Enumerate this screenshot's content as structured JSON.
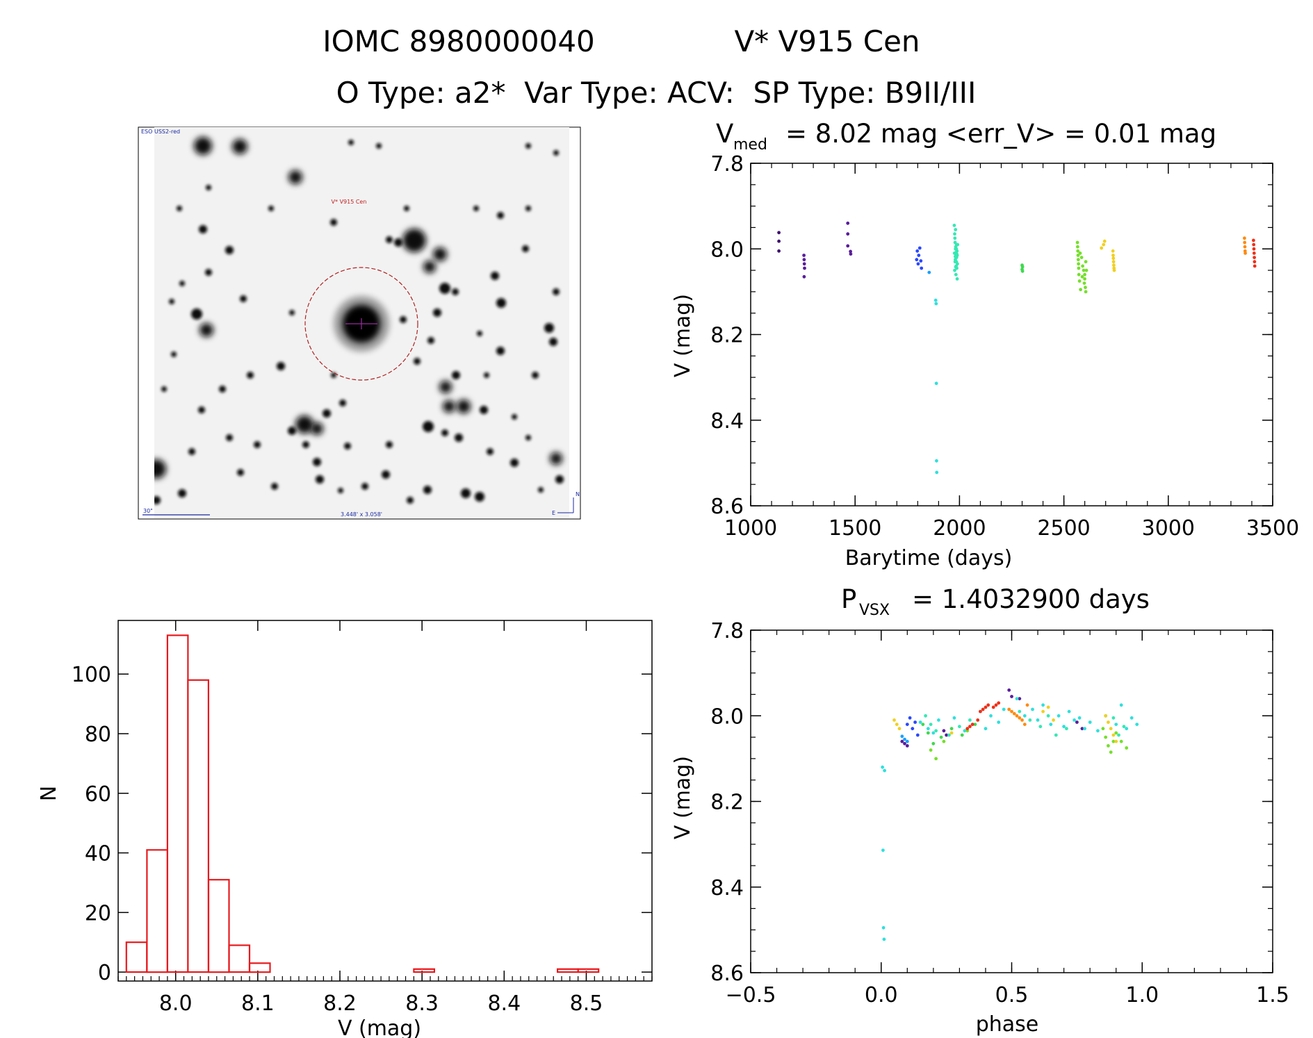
{
  "header": {
    "title_line1_id": "IOMC 8980000040",
    "title_line1_name": "V* V915 Cen",
    "title_line2": "O Type: a2*  Var Type: ACV:  SP Type: B9II/III"
  },
  "image_panel": {
    "survey_label": "ESO USS2-red",
    "target_label": "V* V915 Cen",
    "scale_label": "30\"",
    "size_label": "3.448' x 3.058'",
    "compass_n": "N",
    "compass_e": "E"
  },
  "colors": {
    "histogram": "#e8191d",
    "series_palette": [
      "#3f0f6e",
      "#5a1d9c",
      "#2a48ff",
      "#1aa0ff",
      "#2fe0dc",
      "#36e8b3",
      "#3fd94f",
      "#74e02a",
      "#f0d020",
      "#ff8a10",
      "#ee3018"
    ]
  },
  "chart_data": [
    {
      "id": "light_curve",
      "type": "scatter",
      "title_prefix": "V",
      "title_sub": "med",
      "title_rest": "= 8.02 mag <err_V> = 0.01 mag",
      "xlabel": "Barytime (days)",
      "ylabel": "V (mag)",
      "xlim": [
        1000,
        3500
      ],
      "ylim": [
        8.6,
        7.8
      ],
      "xticks": [
        "1000",
        "1500",
        "2000",
        "2500",
        "3000",
        "3500"
      ],
      "yticks": [
        "7.8",
        "8.0",
        "8.2",
        "8.4",
        "8.6"
      ],
      "series": [
        {
          "name": "s1",
          "color": "#3f0f6e",
          "x": [
            1135,
            1135,
            1135
          ],
          "y": [
            7.962,
            7.982,
            8.005
          ]
        },
        {
          "name": "s2",
          "color": "#5a1d9c",
          "x": [
            1255,
            1256,
            1257,
            1258,
            1256
          ],
          "y": [
            8.015,
            8.025,
            8.035,
            8.045,
            8.065
          ]
        },
        {
          "name": "s3",
          "color": "#5a1d9c",
          "x": [
            1465,
            1465,
            1465,
            1478,
            1479
          ],
          "y": [
            7.94,
            7.965,
            7.993,
            8.006,
            8.012
          ]
        },
        {
          "name": "s4",
          "color": "#2a48ff",
          "x": [
            1795,
            1798,
            1802,
            1805,
            1810,
            1815,
            1818
          ],
          "y": [
            8.025,
            8.005,
            8.035,
            8.015,
            7.998,
            8.028,
            8.045
          ]
        },
        {
          "name": "s5",
          "color": "#1aa0ff",
          "x": [
            1855
          ],
          "y": [
            8.055
          ]
        },
        {
          "name": "s6",
          "color": "#2fe0dc",
          "x": [
            1886,
            1888,
            1889,
            1890,
            1891
          ],
          "y": [
            8.12,
            8.128,
            8.314,
            8.495,
            8.522
          ]
        },
        {
          "name": "s7",
          "color": "#36e8b3",
          "x": [
            1975,
            1977,
            1979,
            1981,
            1983,
            1985,
            1987,
            1989,
            1991,
            1976,
            1980,
            1984,
            1988,
            1978,
            1982,
            1986,
            1990,
            1977,
            1983,
            1989,
            1981,
            1985,
            1979,
            1987,
            1984,
            1980,
            1986,
            1982
          ],
          "y": [
            7.945,
            7.965,
            7.985,
            8.0,
            8.015,
            8.03,
            8.045,
            8.07,
            7.99,
            8.01,
            8.025,
            8.04,
            8.005,
            7.975,
            7.995,
            8.02,
            8.035,
            8.05,
            8.06,
            8.015,
            7.955,
            8.0,
            8.03,
            8.012,
            8.008,
            8.018,
            7.99,
            8.042
          ]
        },
        {
          "name": "s8",
          "color": "#3fd94f",
          "x": [
            2300,
            2302,
            2300,
            2302
          ],
          "y": [
            8.038,
            8.042,
            8.048,
            8.052
          ]
        },
        {
          "name": "s9",
          "color": "#74e02a",
          "x": [
            2565,
            2566,
            2567,
            2568,
            2569,
            2570,
            2571,
            2572,
            2575,
            2580,
            2585,
            2590,
            2595,
            2600,
            2600,
            2598,
            2603,
            2605,
            2605,
            2608,
            2578,
            2588
          ],
          "y": [
            7.985,
            7.995,
            8.005,
            8.015,
            8.025,
            8.035,
            8.045,
            8.06,
            8.075,
            8.095,
            8.02,
            8.04,
            8.05,
            8.06,
            8.07,
            8.08,
            8.09,
            8.1,
            8.03,
            8.05,
            8.01,
            8.065
          ]
        },
        {
          "name": "s10",
          "color": "#f0d020",
          "x": [
            2680,
            2690,
            2695,
            2735,
            2736,
            2737,
            2738,
            2739,
            2740,
            2741
          ],
          "y": [
            7.998,
            7.99,
            7.982,
            8.005,
            8.015,
            8.022,
            8.03,
            8.038,
            8.045,
            8.05
          ]
        },
        {
          "name": "s11",
          "color": "#ff8a10",
          "x": [
            3365,
            3366,
            3367,
            3368,
            3369
          ],
          "y": [
            7.975,
            7.985,
            7.995,
            8.005,
            8.01
          ]
        },
        {
          "name": "s12",
          "color": "#ee3018",
          "x": [
            3408,
            3409,
            3410,
            3411,
            3412,
            3413,
            3414
          ],
          "y": [
            7.98,
            7.99,
            8.0,
            8.01,
            8.02,
            8.03,
            8.04
          ]
        }
      ]
    },
    {
      "id": "phase_curve",
      "type": "scatter",
      "title_prefix": "P",
      "title_sub": "VSX",
      "title_rest": "= 1.4032900 days",
      "xlabel": "phase",
      "ylabel": "V (mag)",
      "xlim": [
        -0.5,
        1.5
      ],
      "ylim": [
        8.6,
        7.8
      ],
      "xticks": [
        "−0.5",
        "0.0",
        "0.5",
        "1.0",
        "1.5"
      ],
      "yticks": [
        "7.8",
        "8.0",
        "8.2",
        "8.4",
        "8.6"
      ],
      "series": [
        {
          "name": "purple",
          "color": "#5a1d9c",
          "x": [
            0.49,
            0.5,
            0.53,
            0.75,
            0.77,
            0.08,
            0.09,
            0.1,
            0.24,
            0.25
          ],
          "y": [
            7.94,
            7.955,
            7.96,
            8.015,
            8.03,
            8.06,
            8.065,
            8.07,
            8.035,
            8.045
          ]
        },
        {
          "name": "blue",
          "color": "#2a48ff",
          "x": [
            0.1,
            0.11,
            0.12,
            0.13,
            0.14
          ],
          "y": [
            8.02,
            8.005,
            8.03,
            8.015,
            8.045
          ]
        },
        {
          "name": "lightblue",
          "color": "#1aa0ff",
          "x": [
            0.08,
            0.09,
            0.1
          ],
          "y": [
            8.048,
            8.055,
            8.06
          ]
        },
        {
          "name": "cyan",
          "color": "#2fe0dc",
          "x": [
            0.52,
            0.55,
            0.58,
            0.6,
            0.62,
            0.65,
            0.68,
            0.7,
            0.72,
            0.74,
            0.76,
            0.78,
            0.8,
            0.83,
            0.86,
            0.9,
            0.92,
            0.94,
            0.96,
            0.98,
            0.005,
            0.007,
            0.009,
            0.011,
            0.013,
            0.15,
            0.18,
            0.2,
            0.22,
            0.28,
            0.32,
            0.35,
            0.38,
            0.4,
            0.42,
            0.45,
            0.47
          ],
          "y": [
            7.96,
            8.0,
            7.985,
            8.01,
            7.975,
            8.02,
            8.0,
            8.025,
            7.99,
            8.01,
            8.005,
            8.03,
            8.015,
            8.035,
            8.0,
            8.02,
            7.975,
            8.03,
            8.005,
            8.02,
            8.12,
            8.314,
            8.495,
            8.522,
            8.128,
            8.015,
            8.03,
            8.04,
            8.01,
            8.005,
            8.035,
            8.02,
            7.99,
            8.03,
            8.0,
            8.015,
            7.985
          ]
        },
        {
          "name": "teal",
          "color": "#36e8b3",
          "x": [
            0.53,
            0.57,
            0.61,
            0.64,
            0.67,
            0.71,
            0.89,
            0.91,
            0.93,
            0.17,
            0.19,
            0.21,
            0.26,
            0.3,
            0.34
          ],
          "y": [
            7.99,
            8.01,
            8.025,
            8.0,
            8.045,
            8.03,
            8.005,
            8.045,
            8.025,
            8.0,
            8.02,
            8.035,
            8.045,
            8.025,
            8.01
          ]
        },
        {
          "name": "green",
          "color": "#3fd94f",
          "x": [
            0.16,
            0.18,
            0.2,
            0.23,
            0.27,
            0.31,
            0.36
          ],
          "y": [
            8.02,
            8.04,
            8.065,
            8.05,
            8.03,
            8.045,
            8.02
          ]
        },
        {
          "name": "lime",
          "color": "#74e02a",
          "x": [
            0.85,
            0.86,
            0.87,
            0.88,
            0.89,
            0.9,
            0.92,
            0.94,
            0.19,
            0.21,
            0.24,
            0.33
          ],
          "y": [
            8.03,
            8.05,
            8.07,
            8.085,
            8.06,
            8.04,
            8.06,
            8.075,
            8.08,
            8.1,
            8.06,
            8.035
          ]
        },
        {
          "name": "yellow",
          "color": "#f0d020",
          "x": [
            0.62,
            0.64,
            0.66,
            0.86,
            0.87,
            0.88,
            0.89,
            0.9,
            0.05,
            0.06,
            0.07,
            0.27
          ],
          "y": [
            7.99,
            7.98,
            8.01,
            8.0,
            8.015,
            8.03,
            8.045,
            8.06,
            8.01,
            8.02,
            8.03,
            8.04
          ]
        },
        {
          "name": "orange",
          "color": "#ff8a10",
          "x": [
            0.49,
            0.5,
            0.51,
            0.52,
            0.53,
            0.54,
            0.55,
            0.56
          ],
          "y": [
            7.985,
            7.99,
            7.995,
            8.0,
            8.005,
            8.01,
            8.02,
            7.975
          ]
        },
        {
          "name": "red",
          "color": "#ee3018",
          "x": [
            0.33,
            0.34,
            0.35,
            0.37,
            0.38,
            0.39,
            0.4,
            0.41,
            0.43,
            0.44,
            0.45
          ],
          "y": [
            8.03,
            8.025,
            8.02,
            8.01,
            7.99,
            7.985,
            7.98,
            7.975,
            7.98,
            7.975,
            7.97
          ]
        }
      ]
    },
    {
      "id": "histogram",
      "type": "bar",
      "xlabel": "V (mag)",
      "ylabel": "N",
      "xlim": [
        7.93,
        8.58
      ],
      "ylim": [
        -3,
        118
      ],
      "xticks": [
        "8.0",
        "8.1",
        "8.2",
        "8.3",
        "8.4",
        "8.5"
      ],
      "yticks": [
        "0",
        "20",
        "40",
        "60",
        "80",
        "100"
      ],
      "bin_edges": [
        7.94,
        7.965,
        7.99,
        8.015,
        8.04,
        8.065,
        8.09,
        8.115,
        8.14,
        8.165,
        8.19,
        8.215,
        8.24,
        8.265,
        8.29,
        8.315,
        8.34,
        8.365,
        8.39,
        8.415,
        8.44,
        8.465,
        8.49,
        8.515,
        8.54
      ],
      "counts": [
        10,
        41,
        113,
        98,
        31,
        9,
        3,
        0,
        0,
        0,
        0,
        0,
        0,
        0,
        1,
        0,
        0,
        0,
        0,
        0,
        0,
        1,
        1,
        0
      ]
    }
  ]
}
